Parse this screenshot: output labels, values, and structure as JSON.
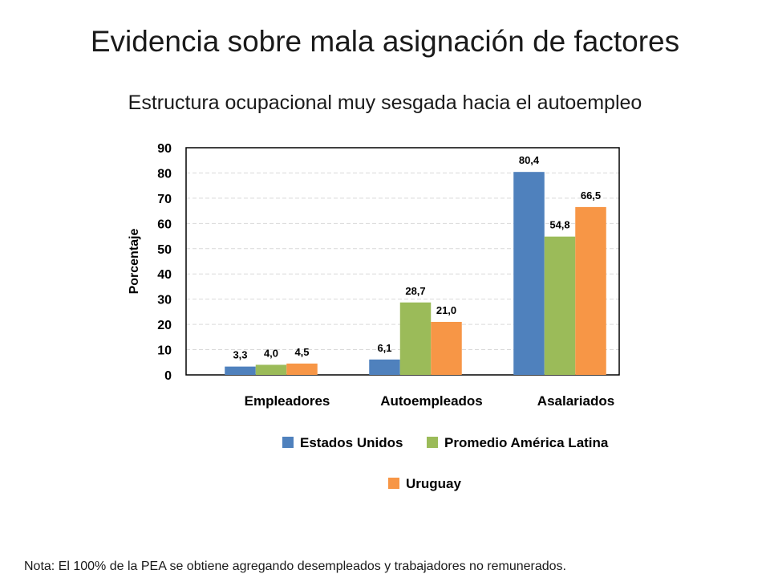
{
  "slide": {
    "title": "Evidencia sobre mala asignación de factores",
    "subtitle": "Estructura ocupacional muy sesgada hacia el autoempleo",
    "note": "Nota: El 100% de la PEA se obtiene agregando desempleados  y trabajadores no remunerados."
  },
  "chart_data": {
    "type": "bar",
    "categories": [
      "Empleadores",
      "Autoempleados",
      "Asalariados"
    ],
    "series": [
      {
        "name": "Estados Unidos",
        "values": [
          3.3,
          6.1,
          80.4
        ],
        "labels": [
          "3,3",
          "6,1",
          "80,4"
        ],
        "color": "#4f81bd"
      },
      {
        "name": "Promedio América Latina",
        "values": [
          4.0,
          28.7,
          54.8
        ],
        "labels": [
          "4,0",
          "28,7",
          "54,8"
        ],
        "color": "#9bbb59"
      },
      {
        "name": "Uruguay",
        "values": [
          4.5,
          21.0,
          66.5
        ],
        "labels": [
          "4,5",
          "21,0",
          "66,5"
        ],
        "color": "#f79646"
      }
    ],
    "ylabel": "Porcentaje",
    "xlabel": "",
    "ylim": [
      0,
      90
    ],
    "yticks": [
      0,
      10,
      20,
      30,
      40,
      50,
      60,
      70,
      80,
      90
    ],
    "grid": true,
    "legend": "bottom"
  }
}
